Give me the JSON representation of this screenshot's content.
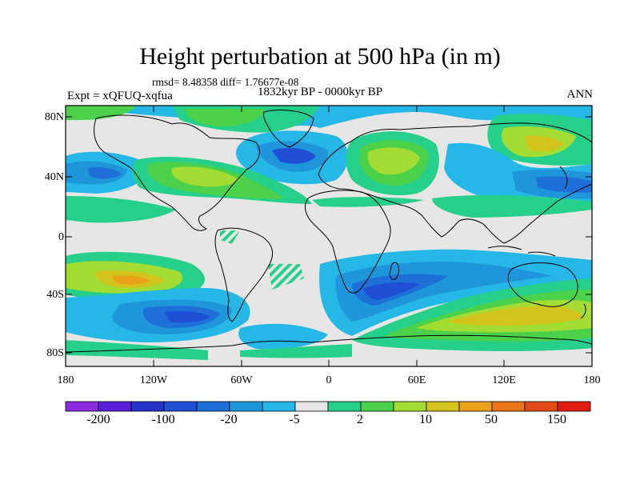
{
  "title": "Height perturbation at 500 hPa (in m)",
  "stats_text": "rmsd= 8.48358 diff= 1.76677e-08",
  "period_text": "1832kyr BP - 0000kyr BP",
  "experiment_text": "Expt = xQFUQ-xqfua",
  "season_text": "ANN",
  "lat_labels": [
    "80N",
    "40N",
    "0",
    "40S",
    "80S"
  ],
  "lon_labels": [
    "180",
    "120W",
    "60W",
    "0",
    "60E",
    "120E",
    "180"
  ],
  "colorbar": {
    "colors": [
      "#8a2be2",
      "#5a1fd6",
      "#2633c9",
      "#1f4fd4",
      "#1f6fd8",
      "#1f95dc",
      "#25b8e6",
      "#e6e6e6",
      "#26d08a",
      "#4cd14a",
      "#a3dc32",
      "#d2c41c",
      "#eaa11a",
      "#e87518",
      "#e34b16",
      "#e11d12"
    ],
    "tick_labels": [
      "-200",
      "-100",
      "-20",
      "-5",
      "2",
      "10",
      "50",
      "150"
    ]
  },
  "map_colors": {
    "neutral": "#e6e6e6",
    "neg1": "#25b8e6",
    "neg2": "#1f95dc",
    "neg3": "#1f6fd8",
    "neg4": "#1f4fd4",
    "pos1": "#26d08a",
    "pos2": "#4cd14a",
    "pos3": "#a3dc32",
    "pos4": "#d2c41c",
    "pos5": "#eaa11a"
  }
}
